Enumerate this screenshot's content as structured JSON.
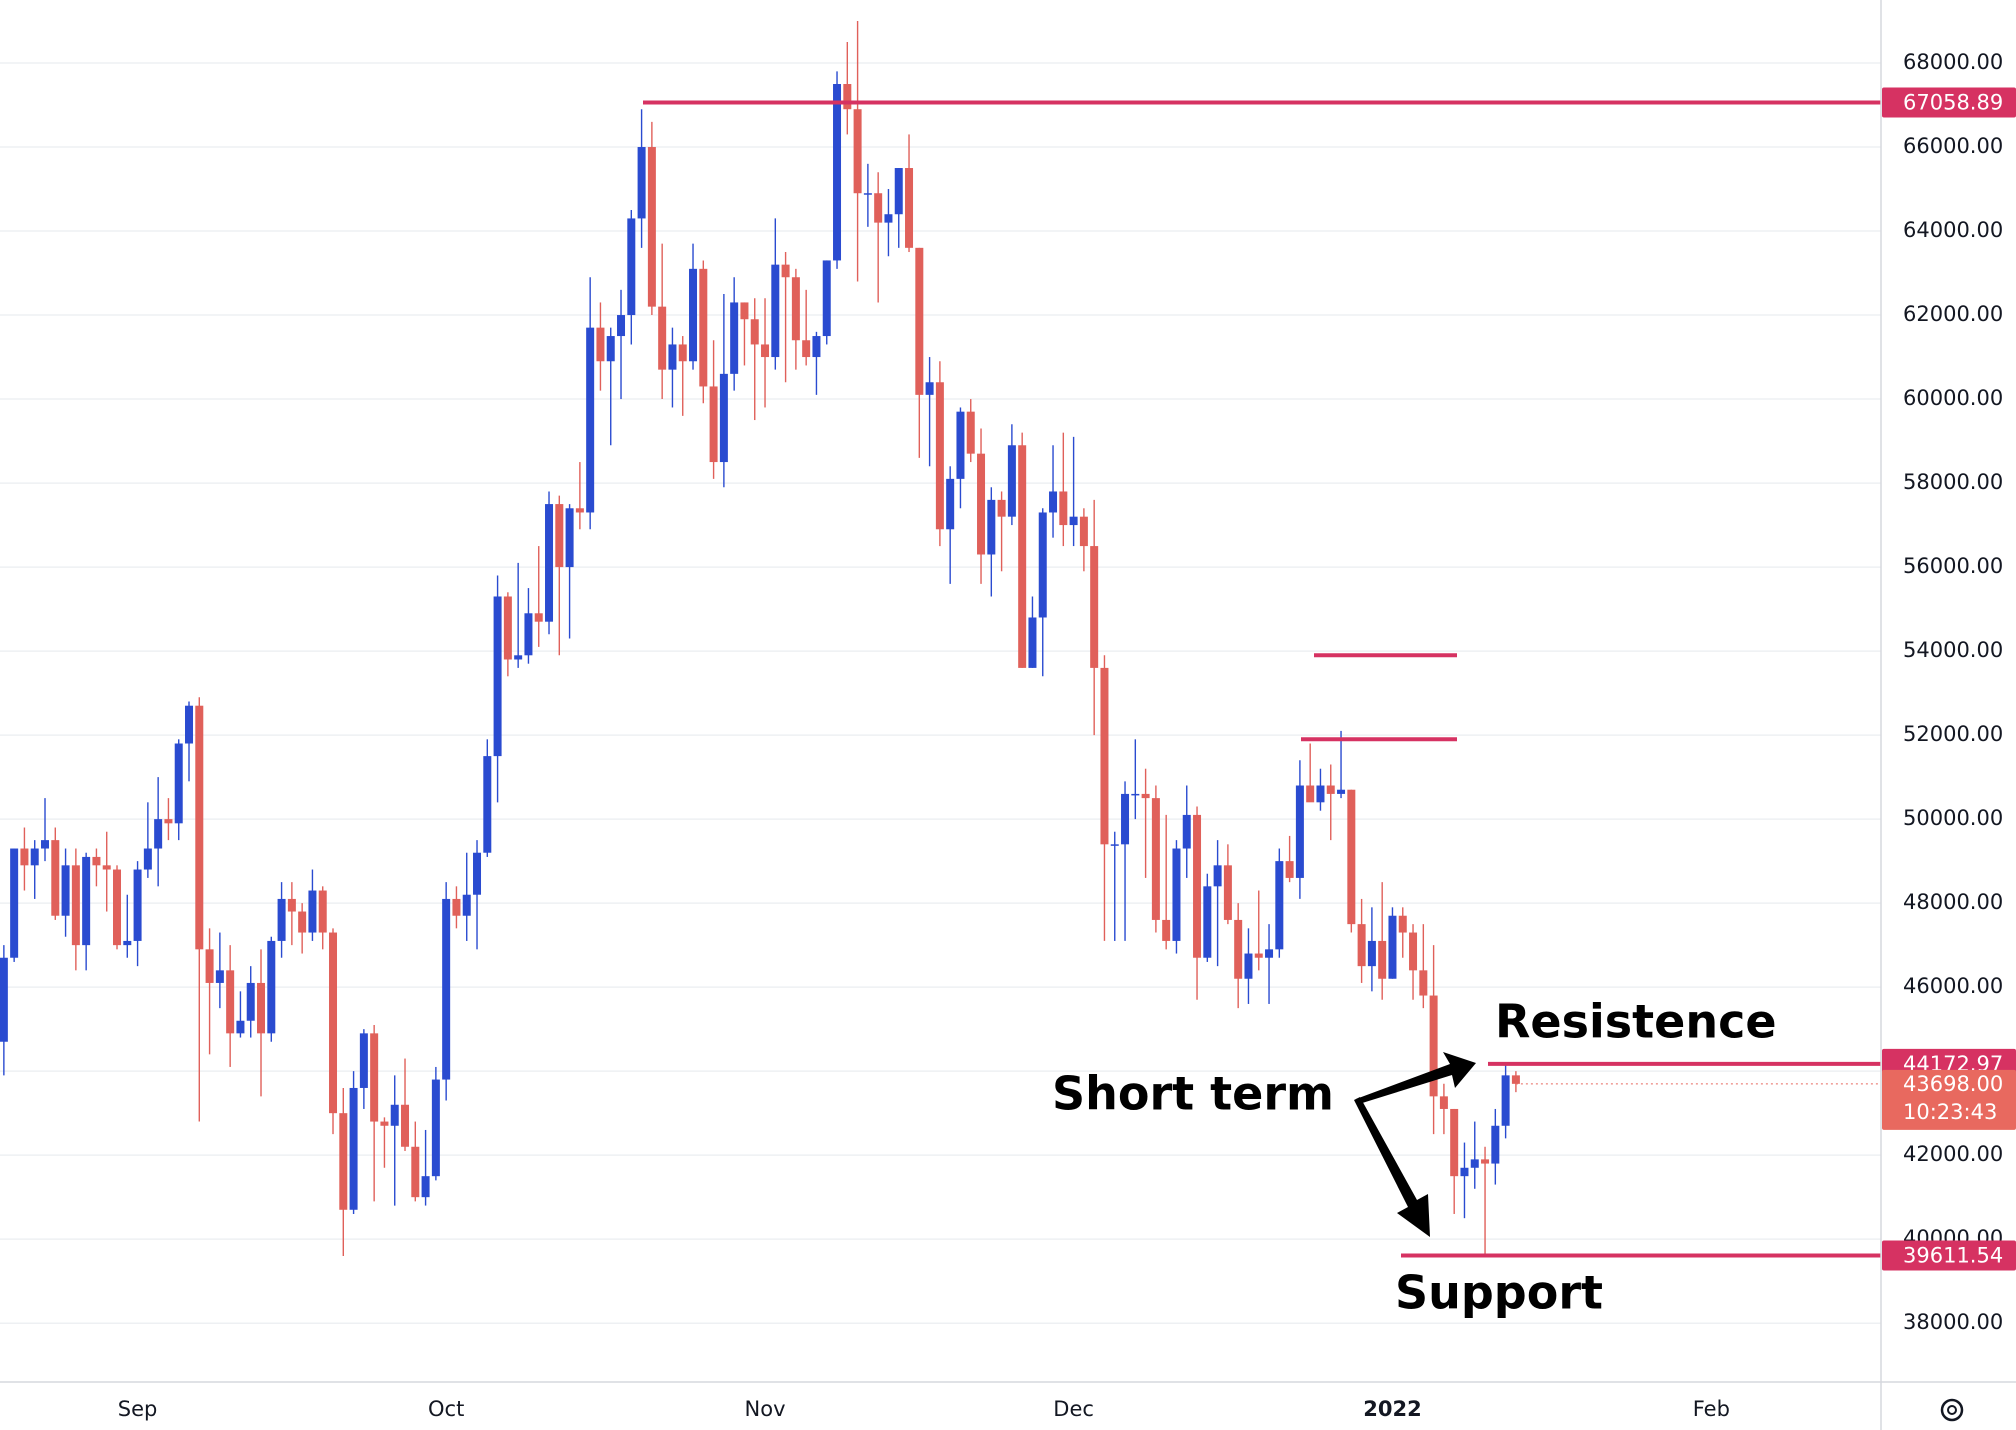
{
  "chart_data": {
    "type": "candlestick",
    "categories": [
      null,
      null,
      null,
      null,
      null,
      null,
      null,
      null,
      null,
      null,
      null,
      null,
      null,
      "Sep",
      null,
      null,
      null,
      null,
      null,
      null,
      null,
      null,
      null,
      null,
      null,
      null,
      null,
      null,
      null,
      null,
      null,
      null,
      null,
      null,
      null,
      null,
      null,
      null,
      null,
      null,
      null,
      null,
      null,
      "Oct",
      null,
      null,
      null,
      null,
      null,
      null,
      null,
      null,
      null,
      null,
      null,
      null,
      null,
      null,
      null,
      null,
      null,
      null,
      null,
      null,
      null,
      null,
      null,
      null,
      null,
      null,
      null,
      null,
      null,
      null,
      "Nov",
      null,
      null,
      null,
      null,
      null,
      null,
      null,
      null,
      null,
      null,
      null,
      null,
      null,
      null,
      null,
      null,
      null,
      null,
      null,
      null,
      null,
      null,
      null,
      null,
      null,
      null,
      null,
      null,
      null,
      "Dec",
      null,
      null,
      null,
      null,
      null,
      null,
      null,
      null,
      null,
      null,
      null,
      null,
      null,
      null,
      null,
      null,
      null,
      null,
      null,
      null,
      null,
      null,
      null,
      null,
      null,
      null,
      null,
      null,
      null,
      null,
      "2022",
      null,
      null,
      null,
      null,
      null,
      null,
      null,
      null,
      null,
      null,
      null,
      null,
      null,
      null,
      null,
      null,
      null,
      null,
      null,
      null,
      null,
      null,
      null,
      null,
      null,
      null,
      null,
      null,
      null,
      null,
      "Feb",
      null,
      null,
      null,
      null,
      null,
      null,
      null,
      null,
      null,
      null,
      null,
      null,
      null,
      null,
      null,
      null
    ],
    "open": [
      44700,
      46700,
      49300,
      48900,
      49300,
      49500,
      47700,
      48900,
      47000,
      49100,
      48900,
      48800,
      47000,
      47100,
      48800,
      49300,
      50000,
      49900,
      51800,
      52700,
      46900,
      46100,
      46400,
      44900,
      45200,
      46100,
      44900,
      47100,
      48100,
      47800,
      47300,
      48300,
      47300,
      43000,
      40700,
      43600,
      44900,
      42800,
      42700,
      43200,
      42200,
      41000,
      41500,
      43800,
      48100,
      47700,
      48200,
      49200,
      51500,
      55300,
      53800,
      53900,
      54900,
      54700,
      57500,
      56000,
      57400,
      57300,
      61700,
      60900,
      61500,
      62000,
      64300,
      66000,
      62200,
      60700,
      61300,
      60900,
      63100,
      60300,
      58500,
      60600,
      62300,
      61900,
      61300,
      61000,
      63200,
      62900,
      61400,
      61000,
      61500,
      63300,
      67500,
      66900,
      64900,
      64900,
      64200,
      64400,
      65500,
      63600,
      60100,
      60400,
      56900,
      58100,
      59700,
      58700,
      56300,
      57600,
      57200,
      58900,
      53600,
      54800,
      57300,
      57800,
      57000,
      57200,
      56500,
      53600,
      49400,
      49400,
      50600,
      50600,
      50500,
      47600,
      47100,
      49300,
      50100,
      46700,
      48400,
      48900,
      47600,
      46200,
      46800,
      46700,
      46900,
      49000,
      48600,
      50800,
      50400,
      50800,
      50600,
      50700,
      47500,
      46500,
      47100,
      46200,
      47700,
      47300,
      46400,
      45800,
      43400,
      43100,
      41500,
      41700,
      41900,
      41800,
      42700,
      43900,
      null,
      null,
      null,
      null,
      null,
      null,
      null,
      null,
      null,
      null,
      null,
      null,
      null,
      null,
      null,
      null,
      null,
      null,
      null,
      null,
      null,
      null,
      null,
      null,
      null,
      null,
      null,
      null,
      null,
      null,
      null,
      null,
      null,
      null,
      null
    ],
    "high": [
      47000,
      49300,
      49800,
      49500,
      50500,
      49800,
      49300,
      49300,
      49200,
      49300,
      49700,
      48900,
      48200,
      49000,
      50400,
      51000,
      50500,
      51900,
      52800,
      52900,
      47400,
      47300,
      47000,
      45900,
      46500,
      46900,
      47200,
      48500,
      48500,
      48000,
      48800,
      48400,
      47400,
      43600,
      44000,
      45000,
      45100,
      42900,
      43900,
      44300,
      42800,
      42600,
      44100,
      48500,
      48400,
      49200,
      49500,
      51900,
      55800,
      55400,
      56100,
      55500,
      56500,
      57800,
      57700,
      57500,
      58500,
      62900,
      62300,
      61700,
      62600,
      64500,
      66900,
      66600,
      63700,
      61700,
      61500,
      63700,
      63300,
      61400,
      62500,
      62900,
      62300,
      62400,
      62400,
      64300,
      63500,
      63100,
      62600,
      61600,
      63300,
      67800,
      68500,
      69000,
      65600,
      65400,
      65000,
      65500,
      66300,
      63600,
      61000,
      60900,
      58400,
      59800,
      60000,
      59300,
      57900,
      57800,
      59400,
      59200,
      55300,
      57400,
      58900,
      59200,
      59100,
      57400,
      57600,
      53900,
      49700,
      50900,
      51900,
      51200,
      50800,
      50100,
      49500,
      50800,
      50300,
      48700,
      49500,
      49400,
      48000,
      47400,
      48300,
      47500,
      49300,
      49600,
      51400,
      51800,
      51200,
      51300,
      52100,
      50700,
      48100,
      47900,
      48500,
      47900,
      47900,
      47500,
      47500,
      47000,
      43700,
      43100,
      42300,
      42800,
      42200,
      43100,
      44200,
      44000,
      null,
      null,
      null,
      null,
      null,
      null,
      null,
      null,
      null,
      null,
      null,
      null,
      null,
      null,
      null,
      null,
      null,
      null,
      null,
      null,
      null,
      null,
      null,
      null,
      null,
      null,
      null,
      null,
      null,
      null,
      null,
      null,
      null,
      null,
      null
    ],
    "low": [
      43900,
      46600,
      48300,
      48100,
      49000,
      47600,
      47200,
      46400,
      46400,
      48400,
      47800,
      46900,
      46700,
      46500,
      48600,
      48400,
      49500,
      49500,
      50900,
      42800,
      44400,
      45500,
      44100,
      44800,
      44800,
      43400,
      44700,
      46700,
      47000,
      46800,
      47100,
      46900,
      42500,
      39600,
      40600,
      43100,
      40900,
      41700,
      40800,
      42100,
      40900,
      40800,
      41400,
      43300,
      47400,
      47100,
      46900,
      49100,
      50400,
      53400,
      53600,
      53700,
      54100,
      54400,
      53900,
      54300,
      56900,
      56900,
      60200,
      58900,
      60000,
      61300,
      63600,
      62000,
      60000,
      59800,
      59600,
      60700,
      59900,
      58100,
      57900,
      60200,
      60800,
      59500,
      59800,
      60700,
      60400,
      60700,
      60800,
      60100,
      61300,
      63100,
      66300,
      62800,
      64100,
      62300,
      63400,
      63600,
      63500,
      58600,
      58400,
      56500,
      55600,
      57400,
      58500,
      55600,
      55300,
      55900,
      57000,
      53600,
      53600,
      53400,
      56700,
      56500,
      56500,
      55900,
      52000,
      47100,
      47100,
      47100,
      50000,
      48600,
      47300,
      46900,
      46800,
      48600,
      45700,
      46600,
      46500,
      47500,
      45500,
      45600,
      46400,
      45600,
      46700,
      48500,
      48100,
      50500,
      50200,
      49500,
      50500,
      47300,
      46100,
      45900,
      45700,
      46200,
      46700,
      45700,
      45500,
      42500,
      42500,
      40600,
      40500,
      41200,
      39600,
      41300,
      42400,
      43500,
      null,
      null,
      null,
      null,
      null,
      null,
      null,
      null,
      null,
      null,
      null,
      null,
      null,
      null,
      null,
      null,
      null,
      null,
      null,
      null,
      null,
      null,
      null,
      null,
      null,
      null,
      null,
      null,
      null,
      null,
      null,
      null,
      null,
      null,
      null
    ],
    "close": [
      46700,
      49300,
      48900,
      49300,
      49500,
      47700,
      48900,
      47000,
      49100,
      48900,
      48800,
      47000,
      47100,
      48800,
      49300,
      50000,
      49900,
      51800,
      52700,
      46900,
      46100,
      46400,
      44900,
      45200,
      46100,
      44900,
      47100,
      48100,
      47800,
      47300,
      48300,
      47300,
      43000,
      40700,
      43600,
      44900,
      42800,
      42700,
      43200,
      42200,
      41000,
      41500,
      43800,
      48100,
      47700,
      48200,
      49200,
      51500,
      55300,
      53800,
      53900,
      54900,
      54700,
      57500,
      56000,
      57400,
      57300,
      61700,
      60900,
      61500,
      62000,
      64300,
      66000,
      62200,
      60700,
      61300,
      60900,
      63100,
      60300,
      58500,
      60600,
      62300,
      61900,
      61300,
      61000,
      63200,
      62900,
      61400,
      61000,
      61500,
      63300,
      67500,
      66900,
      64900,
      64900,
      64200,
      64400,
      65500,
      63600,
      60100,
      60400,
      56900,
      58100,
      59700,
      58700,
      56300,
      57600,
      57200,
      58900,
      53600,
      54800,
      57300,
      57800,
      57000,
      57200,
      56500,
      53600,
      49400,
      49400,
      50600,
      50600,
      50500,
      47600,
      47100,
      49300,
      50100,
      46700,
      48400,
      48900,
      47600,
      46200,
      46800,
      46700,
      46900,
      49000,
      48600,
      50800,
      50400,
      50800,
      50600,
      50700,
      47500,
      46500,
      47100,
      46200,
      47700,
      47300,
      46400,
      45800,
      43400,
      43100,
      41500,
      41700,
      41900,
      41800,
      42700,
      43900,
      43698,
      null,
      null,
      null,
      null,
      null,
      null,
      null,
      null,
      null,
      null,
      null,
      null,
      null,
      null,
      null,
      null,
      null,
      null,
      null,
      null,
      null,
      null,
      null,
      null,
      null,
      null,
      null,
      null,
      null,
      null,
      null,
      null,
      null,
      null,
      null
    ],
    "up_color": "#2a4bd0",
    "down_color": "#e0605a",
    "ylim": [
      36600,
      69500
    ],
    "yticks": [
      {
        "value": 38000,
        "label": "38000.00"
      },
      {
        "value": 40000,
        "label": "40000.00"
      },
      {
        "value": 42000,
        "label": "42000.00"
      },
      {
        "value": 44000,
        "label": "44000.00"
      },
      {
        "value": 46000,
        "label": "46000.00"
      },
      {
        "value": 48000,
        "label": "48000.00"
      },
      {
        "value": 50000,
        "label": "50000.00"
      },
      {
        "value": 52000,
        "label": "52000.00"
      },
      {
        "value": 54000,
        "label": "54000.00"
      },
      {
        "value": 56000,
        "label": "56000.00"
      },
      {
        "value": 58000,
        "label": "58000.00"
      },
      {
        "value": 60000,
        "label": "60000.00"
      },
      {
        "value": 62000,
        "label": "62000.00"
      },
      {
        "value": 64000,
        "label": "64000.00"
      },
      {
        "value": 66000,
        "label": "66000.00"
      },
      {
        "value": 68000,
        "label": "68000.00"
      }
    ],
    "grid": true,
    "price_lines": [
      {
        "value": 67058.89,
        "tagged": true,
        "color": "#d63262"
      },
      {
        "value": 44172.97,
        "tagged": true,
        "color": "#d63262"
      },
      {
        "value": 39611.54,
        "tagged": true,
        "color": "#d63262"
      },
      {
        "value": 53900,
        "tagged": false,
        "color": "#d63262"
      },
      {
        "value": 51900,
        "tagged": false,
        "color": "#d63262"
      }
    ],
    "current_price": {
      "value": 43698,
      "label": "43698.00",
      "countdown": "10:23:43",
      "color": "#e8695f"
    },
    "annotations": [
      "Resistence",
      "Short term",
      "Support"
    ]
  }
}
